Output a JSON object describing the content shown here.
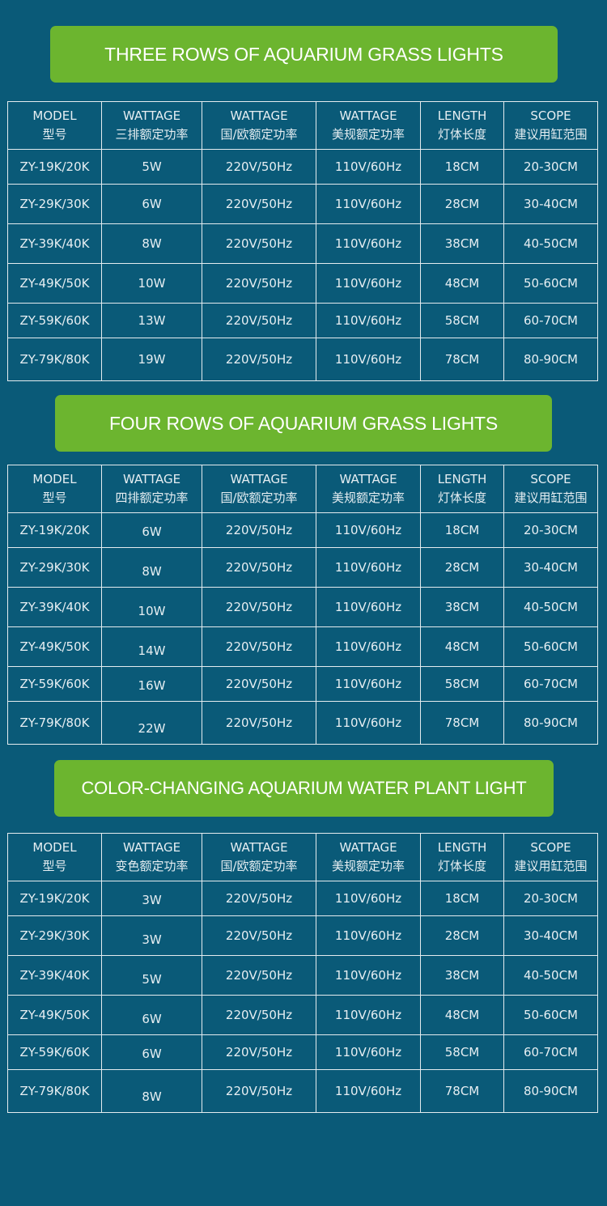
{
  "colors": {
    "background": "#0a5a78",
    "banner": "#6cb52f",
    "grid": "#e4ecef",
    "text": "#e6eef2"
  },
  "sections": [
    {
      "title": "THREE ROWS OF AQUARIUM GRASS LIGHTS",
      "headers": [
        {
          "en": "MODEL",
          "zh": "型号"
        },
        {
          "en": "WATTAGE",
          "zh": "三排额定功率"
        },
        {
          "en": "WATTAGE",
          "zh": "国/欧额定功率"
        },
        {
          "en": "WATTAGE",
          "zh": "美规额定功率"
        },
        {
          "en": "LENGTH",
          "zh": "灯体长度"
        },
        {
          "en": "SCOPE",
          "zh": "建议用缸范围"
        }
      ],
      "rows": [
        [
          "ZY-19K/20K",
          "5W",
          "220V/50Hz",
          "110V/60Hz",
          "18CM",
          "20-30CM"
        ],
        [
          "ZY-29K/30K",
          "6W",
          "220V/50Hz",
          "110V/60Hz",
          "28CM",
          "30-40CM"
        ],
        [
          "ZY-39K/40K",
          "8W",
          "220V/50Hz",
          "110V/60Hz",
          "38CM",
          "40-50CM"
        ],
        [
          "ZY-49K/50K",
          "10W",
          "220V/50Hz",
          "110V/60Hz",
          "48CM",
          "50-60CM"
        ],
        [
          "ZY-59K/60K",
          "13W",
          "220V/50Hz",
          "110V/60Hz",
          "58CM",
          "60-70CM"
        ],
        [
          "ZY-79K/80K",
          "19W",
          "220V/50Hz",
          "110V/60Hz",
          "78CM",
          "80-90CM"
        ]
      ]
    },
    {
      "title": "FOUR ROWS OF AQUARIUM GRASS LIGHTS",
      "headers": [
        {
          "en": "MODEL",
          "zh": "型号"
        },
        {
          "en": "WATTAGE",
          "zh": "四排额定功率"
        },
        {
          "en": "WATTAGE",
          "zh": "国/欧额定功率"
        },
        {
          "en": "WATTAGE",
          "zh": "美规额定功率"
        },
        {
          "en": "LENGTH",
          "zh": "灯体长度"
        },
        {
          "en": "SCOPE",
          "zh": "建议用缸范围"
        }
      ],
      "rows": [
        [
          "ZY-19K/20K",
          "6W",
          "220V/50Hz",
          "110V/60Hz",
          "18CM",
          "20-30CM"
        ],
        [
          "ZY-29K/30K",
          "8W",
          "220V/50Hz",
          "110V/60Hz",
          "28CM",
          "30-40CM"
        ],
        [
          "ZY-39K/40K",
          "10W",
          "220V/50Hz",
          "110V/60Hz",
          "38CM",
          "40-50CM"
        ],
        [
          "ZY-49K/50K",
          "14W",
          "220V/50Hz",
          "110V/60Hz",
          "48CM",
          "50-60CM"
        ],
        [
          "ZY-59K/60K",
          "16W",
          "220V/50Hz",
          "110V/60Hz",
          "58CM",
          "60-70CM"
        ],
        [
          "ZY-79K/80K",
          "22W",
          "220V/50Hz",
          "110V/60Hz",
          "78CM",
          "80-90CM"
        ]
      ]
    },
    {
      "title": "COLOR-CHANGING AQUARIUM WATER PLANT LIGHT",
      "headers": [
        {
          "en": "MODEL",
          "zh": "型号"
        },
        {
          "en": "WATTAGE",
          "zh": "变色额定功率"
        },
        {
          "en": "WATTAGE",
          "zh": "国/欧额定功率"
        },
        {
          "en": "WATTAGE",
          "zh": "美规额定功率"
        },
        {
          "en": "LENGTH",
          "zh": "灯体长度"
        },
        {
          "en": "SCOPE",
          "zh": "建议用缸范围"
        }
      ],
      "rows": [
        [
          "ZY-19K/20K",
          "3W",
          "220V/50Hz",
          "110V/60Hz",
          "18CM",
          "20-30CM"
        ],
        [
          "ZY-29K/30K",
          "3W",
          "220V/50Hz",
          "110V/60Hz",
          "28CM",
          "30-40CM"
        ],
        [
          "ZY-39K/40K",
          "5W",
          "220V/50Hz",
          "110V/60Hz",
          "38CM",
          "40-50CM"
        ],
        [
          "ZY-49K/50K",
          "6W",
          "220V/50Hz",
          "110V/60Hz",
          "48CM",
          "50-60CM"
        ],
        [
          "ZY-59K/60K",
          "6W",
          "220V/50Hz",
          "110V/60Hz",
          "58CM",
          "60-70CM"
        ],
        [
          "ZY-79K/80K",
          "8W",
          "220V/50Hz",
          "110V/60Hz",
          "78CM",
          "80-90CM"
        ]
      ]
    }
  ]
}
